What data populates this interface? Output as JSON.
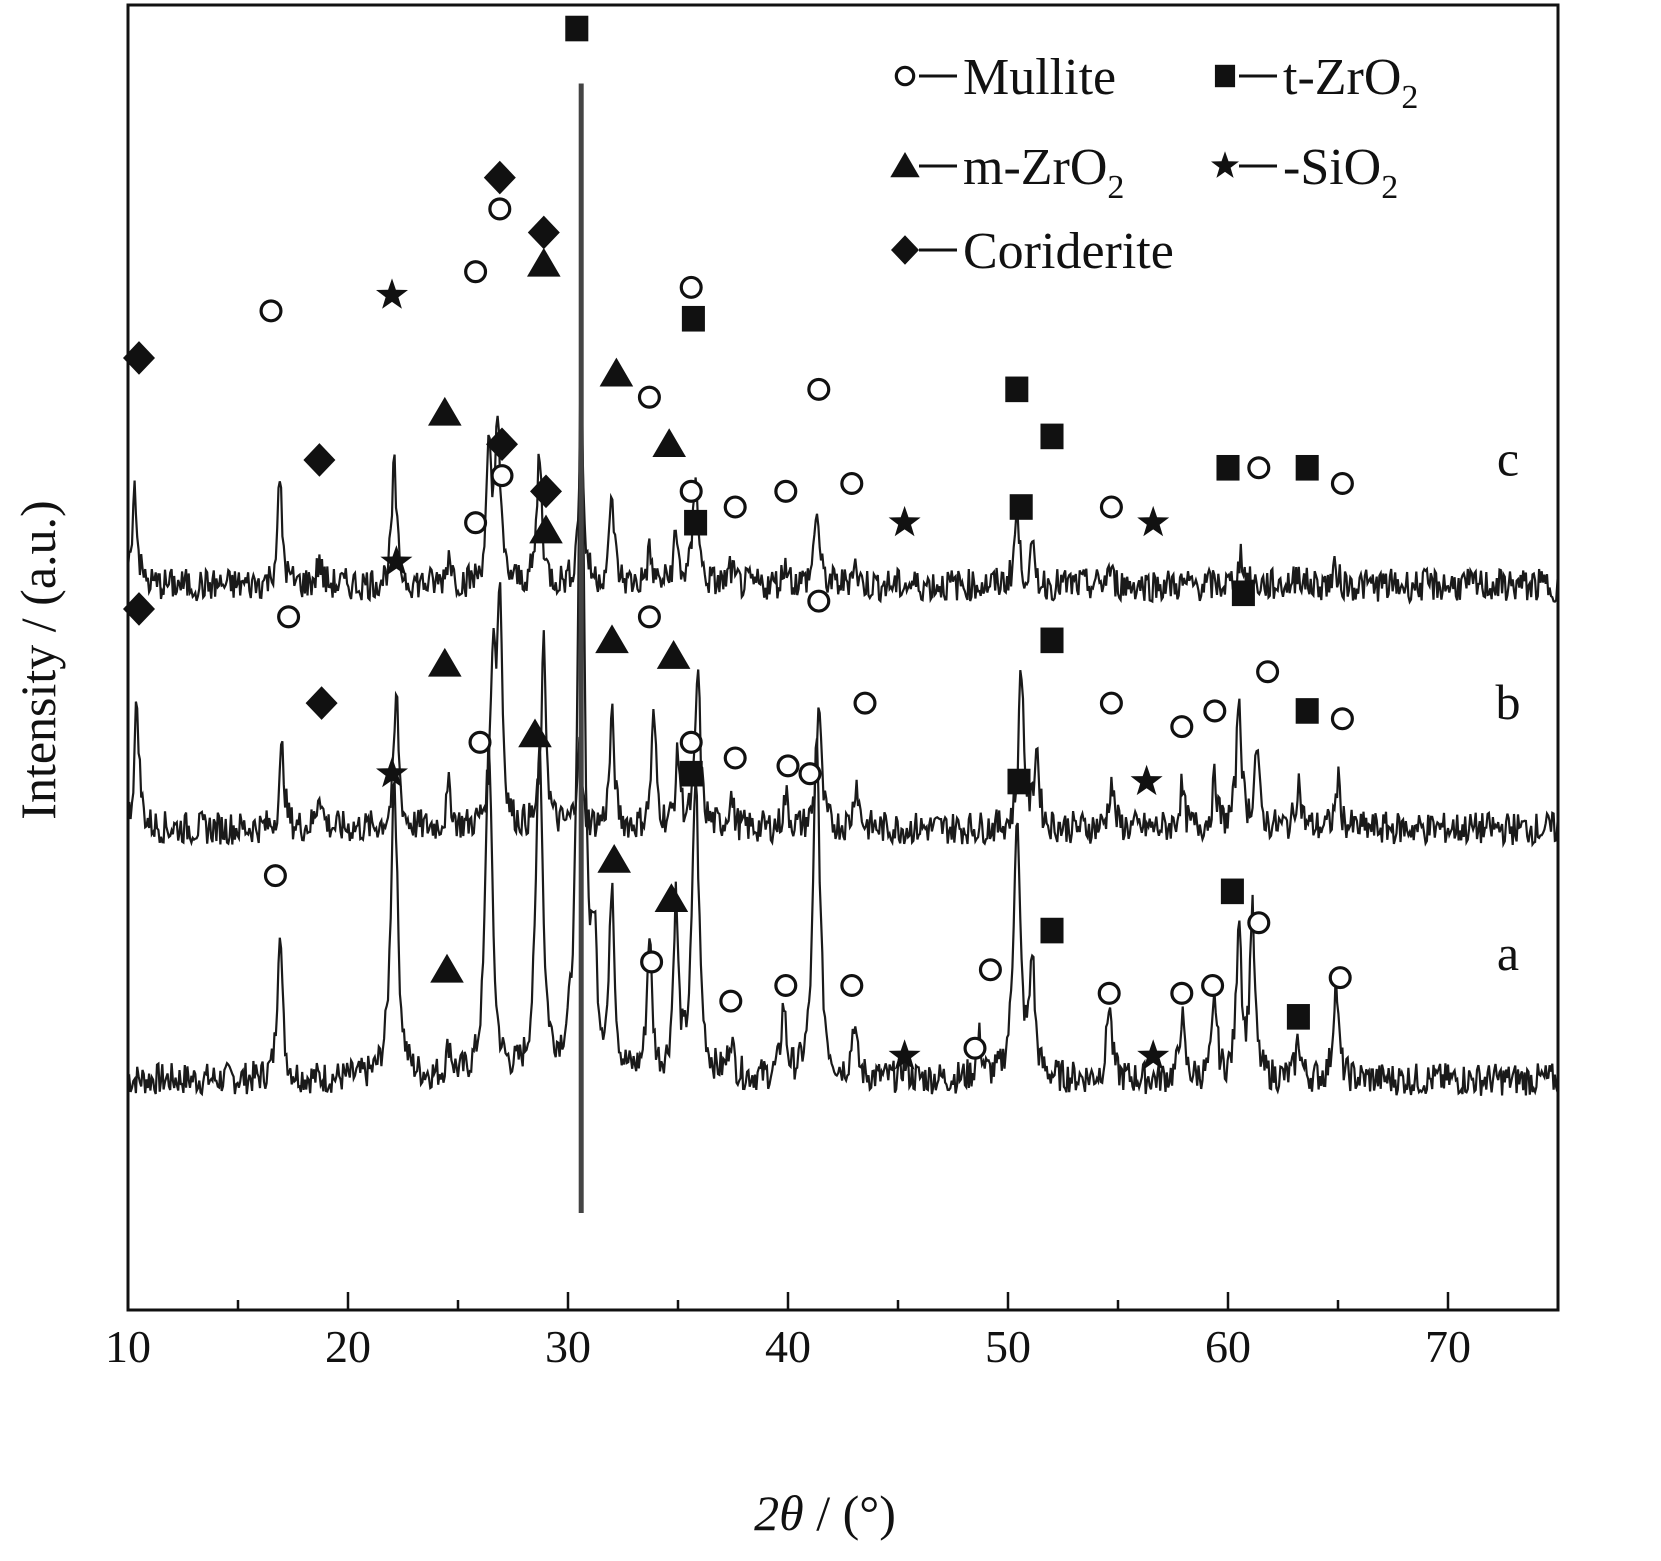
{
  "chart_data": {
    "type": "line",
    "xlabel_main": "2θ",
    "xlabel_unit": " / (°)",
    "ylabel": "Intensity / (a.u.)",
    "xlim": [
      10,
      75
    ],
    "x_ticks": [
      10,
      20,
      30,
      40,
      50,
      60,
      70
    ],
    "x_tick_labels": [
      "10",
      "20",
      "30",
      "40",
      "50",
      "60",
      "70"
    ],
    "y_ticks": [],
    "grid": false,
    "legend_placement": "top-right",
    "legend": [
      {
        "phase": "mullite",
        "label": "Mullite",
        "sub": "",
        "marker": "open-circle"
      },
      {
        "phase": "t-zro2",
        "label": "t-ZrO",
        "sub": "2",
        "marker": "filled-square"
      },
      {
        "phase": "m-zro2",
        "label": "m-ZrO",
        "sub": "2",
        "marker": "filled-triangle"
      },
      {
        "phase": "sio2",
        "label": "-SiO",
        "sub": "2",
        "marker": "filled-star"
      },
      {
        "phase": "cordierite",
        "label": "Coriderite",
        "sub": "",
        "marker": "filled-diamond"
      }
    ],
    "series": [
      {
        "name": "a",
        "baseline": 23,
        "peaks": [
          [
            16.9,
            20
          ],
          [
            22.1,
            39
          ],
          [
            24.6,
            4
          ],
          [
            26.4,
            43
          ],
          [
            28.7,
            43
          ],
          [
            30.6,
            92
          ],
          [
            31.2,
            14
          ],
          [
            32.0,
            24
          ],
          [
            33.7,
            18
          ],
          [
            34.9,
            22
          ],
          [
            35.8,
            38
          ],
          [
            37.4,
            5
          ],
          [
            39.8,
            9
          ],
          [
            41.3,
            43
          ],
          [
            43.0,
            7
          ],
          [
            45.3,
            2
          ],
          [
            48.7,
            5
          ],
          [
            50.4,
            33
          ],
          [
            51.1,
            15
          ],
          [
            54.6,
            10
          ],
          [
            57.9,
            8
          ],
          [
            59.4,
            10
          ],
          [
            60.5,
            21
          ],
          [
            61.1,
            21
          ],
          [
            63.2,
            5
          ],
          [
            64.9,
            13
          ]
        ],
        "markers": [
          {
            "phase": "mullite",
            "x": 16.7,
            "y": 49
          },
          {
            "phase": "sio2",
            "x": 22.0,
            "y": 62
          },
          {
            "phase": "m-zro2",
            "x": 24.5,
            "y": 37
          },
          {
            "phase": "mullite",
            "x": 26.0,
            "y": 66
          },
          {
            "phase": "m-zro2",
            "x": 28.5,
            "y": 67
          },
          {
            "phase": "m-zro2",
            "x": 32.1,
            "y": 51
          },
          {
            "phase": "m-zro2",
            "x": 34.7,
            "y": 46
          },
          {
            "phase": "mullite",
            "x": 33.8,
            "y": 38
          },
          {
            "phase": "mullite",
            "x": 35.6,
            "y": 66
          },
          {
            "phase": "t-zro2",
            "x": 35.6,
            "y": 62
          },
          {
            "phase": "mullite",
            "x": 37.4,
            "y": 33
          },
          {
            "phase": "mullite",
            "x": 39.9,
            "y": 35
          },
          {
            "phase": "mullite",
            "x": 41.0,
            "y": 62
          },
          {
            "phase": "mullite",
            "x": 42.9,
            "y": 35
          },
          {
            "phase": "sio2",
            "x": 45.3,
            "y": 26
          },
          {
            "phase": "mullite",
            "x": 48.5,
            "y": 27
          },
          {
            "phase": "mullite",
            "x": 49.2,
            "y": 37
          },
          {
            "phase": "t-zro2",
            "x": 50.5,
            "y": 61
          },
          {
            "phase": "t-zro2",
            "x": 52.0,
            "y": 42
          },
          {
            "phase": "mullite",
            "x": 54.6,
            "y": 34
          },
          {
            "phase": "sio2",
            "x": 56.6,
            "y": 26
          },
          {
            "phase": "mullite",
            "x": 57.9,
            "y": 34
          },
          {
            "phase": "mullite",
            "x": 59.3,
            "y": 35
          },
          {
            "phase": "t-zro2",
            "x": 60.2,
            "y": 47
          },
          {
            "phase": "mullite",
            "x": 61.4,
            "y": 43
          },
          {
            "phase": "t-zro2",
            "x": 63.2,
            "y": 31
          },
          {
            "phase": "mullite",
            "x": 65.1,
            "y": 36
          }
        ]
      },
      {
        "name": "b",
        "baseline": 55,
        "peaks": [
          [
            10.4,
            16
          ],
          [
            17.0,
            10
          ],
          [
            18.7,
            5
          ],
          [
            22.2,
            17
          ],
          [
            24.6,
            5
          ],
          [
            26.6,
            22
          ],
          [
            26.9,
            29
          ],
          [
            28.9,
            23
          ],
          [
            30.5,
            10
          ],
          [
            32.0,
            14
          ],
          [
            33.9,
            14
          ],
          [
            35.0,
            9
          ],
          [
            35.9,
            20
          ],
          [
            37.4,
            4
          ],
          [
            39.9,
            4
          ],
          [
            41.4,
            16
          ],
          [
            43.1,
            6
          ],
          [
            50.6,
            21
          ],
          [
            51.3,
            10
          ],
          [
            54.7,
            6
          ],
          [
            57.9,
            5
          ],
          [
            59.4,
            6
          ],
          [
            60.5,
            17
          ],
          [
            61.3,
            10
          ],
          [
            63.2,
            6
          ],
          [
            65.0,
            6
          ]
        ],
        "markers": [
          {
            "phase": "cordierite",
            "x": 10.5,
            "y": 83
          },
          {
            "phase": "mullite",
            "x": 17.3,
            "y": 82
          },
          {
            "phase": "cordierite",
            "x": 18.8,
            "y": 71
          },
          {
            "phase": "sio2",
            "x": 22.2,
            "y": 89
          },
          {
            "phase": "m-zro2",
            "x": 24.4,
            "y": 76
          },
          {
            "phase": "mullite",
            "x": 25.8,
            "y": 94
          },
          {
            "phase": "mullite",
            "x": 27.0,
            "y": 100
          },
          {
            "phase": "cordierite",
            "x": 27.0,
            "y": 104
          },
          {
            "phase": "cordierite",
            "x": 29.0,
            "y": 98
          },
          {
            "phase": "m-zro2",
            "x": 29.0,
            "y": 93
          },
          {
            "phase": "m-zro2",
            "x": 32.0,
            "y": 79
          },
          {
            "phase": "mullite",
            "x": 33.7,
            "y": 82
          },
          {
            "phase": "m-zro2",
            "x": 34.8,
            "y": 77
          },
          {
            "phase": "mullite",
            "x": 35.6,
            "y": 98
          },
          {
            "phase": "t-zro2",
            "x": 35.8,
            "y": 94
          },
          {
            "phase": "mullite",
            "x": 37.6,
            "y": 64
          },
          {
            "phase": "mullite",
            "x": 40.0,
            "y": 63
          },
          {
            "phase": "mullite",
            "x": 41.4,
            "y": 84
          },
          {
            "phase": "mullite",
            "x": 43.5,
            "y": 71
          },
          {
            "phase": "t-zro2",
            "x": 50.6,
            "y": 96
          },
          {
            "phase": "t-zro2",
            "x": 52.0,
            "y": 79
          },
          {
            "phase": "mullite",
            "x": 54.7,
            "y": 71
          },
          {
            "phase": "sio2",
            "x": 56.3,
            "y": 61
          },
          {
            "phase": "mullite",
            "x": 57.9,
            "y": 68
          },
          {
            "phase": "mullite",
            "x": 59.4,
            "y": 70
          },
          {
            "phase": "t-zro2",
            "x": 60.7,
            "y": 85
          },
          {
            "phase": "mullite",
            "x": 61.8,
            "y": 75
          },
          {
            "phase": "t-zro2",
            "x": 63.6,
            "y": 70
          },
          {
            "phase": "mullite",
            "x": 65.2,
            "y": 69
          }
        ]
      },
      {
        "name": "c",
        "baseline": 86,
        "peaks": [
          [
            10.3,
            13
          ],
          [
            16.9,
            13
          ],
          [
            18.7,
            3
          ],
          [
            22.1,
            15
          ],
          [
            24.6,
            4
          ],
          [
            26.4,
            16
          ],
          [
            26.8,
            22
          ],
          [
            28.7,
            17
          ],
          [
            30.6,
            20
          ],
          [
            32.0,
            11
          ],
          [
            33.7,
            4
          ],
          [
            34.9,
            6
          ],
          [
            35.8,
            15
          ],
          [
            37.4,
            2
          ],
          [
            39.9,
            3
          ],
          [
            41.3,
            10
          ],
          [
            43.0,
            3
          ],
          [
            50.4,
            9
          ],
          [
            51.1,
            4
          ],
          [
            54.6,
            2
          ],
          [
            60.6,
            4
          ],
          [
            63.2,
            2
          ],
          [
            64.9,
            2
          ]
        ],
        "markers": [
          {
            "phase": "cordierite",
            "x": 10.5,
            "y": 115
          },
          {
            "phase": "mullite",
            "x": 16.5,
            "y": 121
          },
          {
            "phase": "cordierite",
            "x": 18.7,
            "y": 102
          },
          {
            "phase": "sio2",
            "x": 22.0,
            "y": 123
          },
          {
            "phase": "m-zro2",
            "x": 24.4,
            "y": 108
          },
          {
            "phase": "mullite",
            "x": 25.8,
            "y": 126
          },
          {
            "phase": "mullite",
            "x": 26.9,
            "y": 134
          },
          {
            "phase": "cordierite",
            "x": 26.9,
            "y": 138
          },
          {
            "phase": "cordierite",
            "x": 28.9,
            "y": 131
          },
          {
            "phase": "m-zro2",
            "x": 28.9,
            "y": 127
          },
          {
            "phase": "m-zro2",
            "x": 32.2,
            "y": 113
          },
          {
            "phase": "mullite",
            "x": 33.7,
            "y": 110
          },
          {
            "phase": "m-zro2",
            "x": 34.6,
            "y": 104
          },
          {
            "phase": "mullite",
            "x": 35.6,
            "y": 124
          },
          {
            "phase": "t-zro2",
            "x": 35.7,
            "y": 120
          },
          {
            "phase": "mullite",
            "x": 37.6,
            "y": 96
          },
          {
            "phase": "mullite",
            "x": 39.9,
            "y": 98
          },
          {
            "phase": "mullite",
            "x": 41.4,
            "y": 111
          },
          {
            "phase": "mullite",
            "x": 42.9,
            "y": 99
          },
          {
            "phase": "sio2",
            "x": 45.3,
            "y": 94
          },
          {
            "phase": "t-zro2",
            "x": 50.4,
            "y": 111
          },
          {
            "phase": "t-zro2",
            "x": 52.0,
            "y": 105
          },
          {
            "phase": "mullite",
            "x": 54.7,
            "y": 96
          },
          {
            "phase": "sio2",
            "x": 56.6,
            "y": 94
          },
          {
            "phase": "t-zro2",
            "x": 60.0,
            "y": 101
          },
          {
            "phase": "mullite",
            "x": 61.4,
            "y": 101
          },
          {
            "phase": "t-zro2",
            "x": 63.6,
            "y": 101
          },
          {
            "phase": "mullite",
            "x": 65.2,
            "y": 99
          }
        ]
      },
      {
        "name": "",
        "baseline": 0,
        "peaks": [
          [
            30.6,
            0
          ]
        ],
        "markers": [
          {
            "phase": "t-zro2",
            "x": 30.4,
            "y": 157
          }
        ]
      }
    ]
  }
}
